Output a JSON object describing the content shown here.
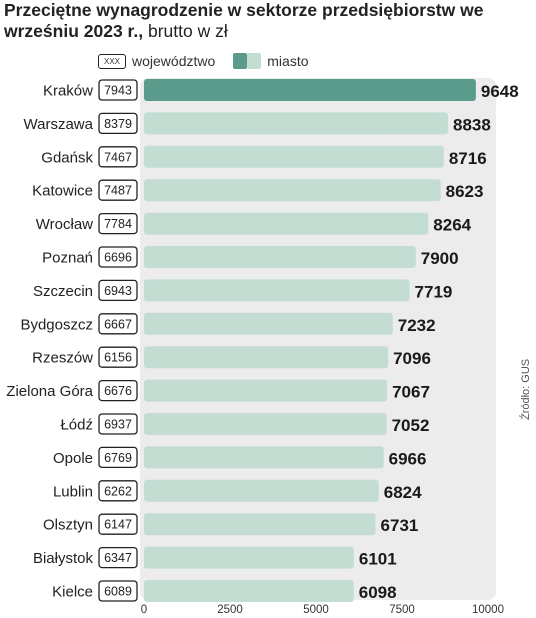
{
  "title": {
    "bold": "Przeciętne wynagrodzenie w sektorze przedsiębiorstw we wrześniu 2023 r.,",
    "normal": " brutto w zł"
  },
  "legend": {
    "region_box_text": "XXX",
    "region_label": "województwo",
    "city_label": "miasto"
  },
  "source": "Źródło: GUS",
  "colors": {
    "highlight_bar": "#5a9b8c",
    "bar": "#c3ddd3",
    "panel": "#ececec"
  },
  "chart_data": {
    "type": "bar",
    "orientation": "horizontal",
    "categories": [
      "Kraków",
      "Warszawa",
      "Gdańsk",
      "Katowice",
      "Wrocław",
      "Poznań",
      "Szczecin",
      "Bydgoszcz",
      "Rzeszów",
      "Zielona Góra",
      "Łódź",
      "Opole",
      "Lublin",
      "Olsztyn",
      "Białystok",
      "Kielce"
    ],
    "series": [
      {
        "name": "miasto",
        "values": [
          9648,
          8838,
          8716,
          8623,
          8264,
          7900,
          7719,
          7232,
          7096,
          7067,
          7052,
          6966,
          6824,
          6731,
          6101,
          6098
        ]
      },
      {
        "name": "województwo",
        "values": [
          7943,
          8379,
          7467,
          7487,
          7784,
          6696,
          6943,
          6667,
          6156,
          6676,
          6937,
          6769,
          6262,
          6147,
          6347,
          6089
        ]
      }
    ],
    "highlight_category": "Kraków",
    "xlim": [
      0,
      10000
    ],
    "xticks": [
      0,
      2500,
      5000,
      7500,
      10000
    ],
    "grid": false
  }
}
